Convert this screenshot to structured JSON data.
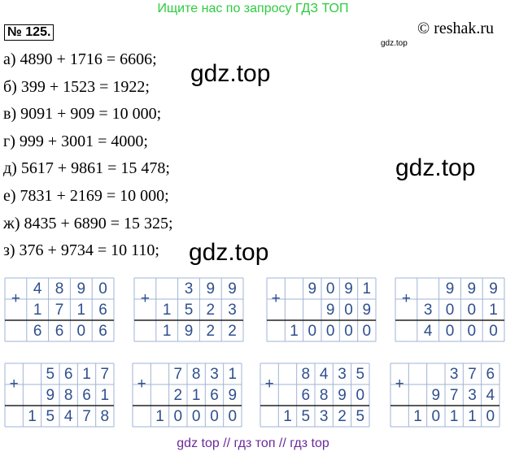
{
  "banner": "Ищите нас по запросу ГДЗ ТОП",
  "problem_number": "№ 125.",
  "copyright": "© reshak.ru",
  "watermark_small": "gdz.top",
  "watermarks": [
    "gdz.top",
    "gdz.top",
    "gdz.top"
  ],
  "lines": [
    "а) 4890 + 1716 = 6606;",
    "б) 399 + 1523 = 1922;",
    "в) 9091 + 909 = 10 000;",
    "г) 999 + 3001 = 4000;",
    "д) 5617 + 9861 = 15 478;",
    "е) 7831 + 2169 = 10 000;",
    "ж) 8435 + 6890 = 15 325;",
    "з) 376 + 9734 = 10 110;"
  ],
  "operator": "+",
  "grids": [
    {
      "rows": [
        "4890",
        "1716",
        "6606"
      ]
    },
    {
      "rows": [
        "399",
        "1523",
        "1922"
      ]
    },
    {
      "rows": [
        "9091",
        "909",
        "10000"
      ]
    },
    {
      "rows": [
        "999",
        "3001",
        "4000"
      ]
    },
    {
      "rows": [
        "5617",
        "9861",
        "15478"
      ]
    },
    {
      "rows": [
        "7831",
        "2169",
        "10000"
      ]
    },
    {
      "rows": [
        "8435",
        "6890",
        "15325"
      ]
    },
    {
      "rows": [
        "376",
        "9734",
        "10110"
      ]
    }
  ],
  "footer": "gdz top // гдз топ // гдз top"
}
